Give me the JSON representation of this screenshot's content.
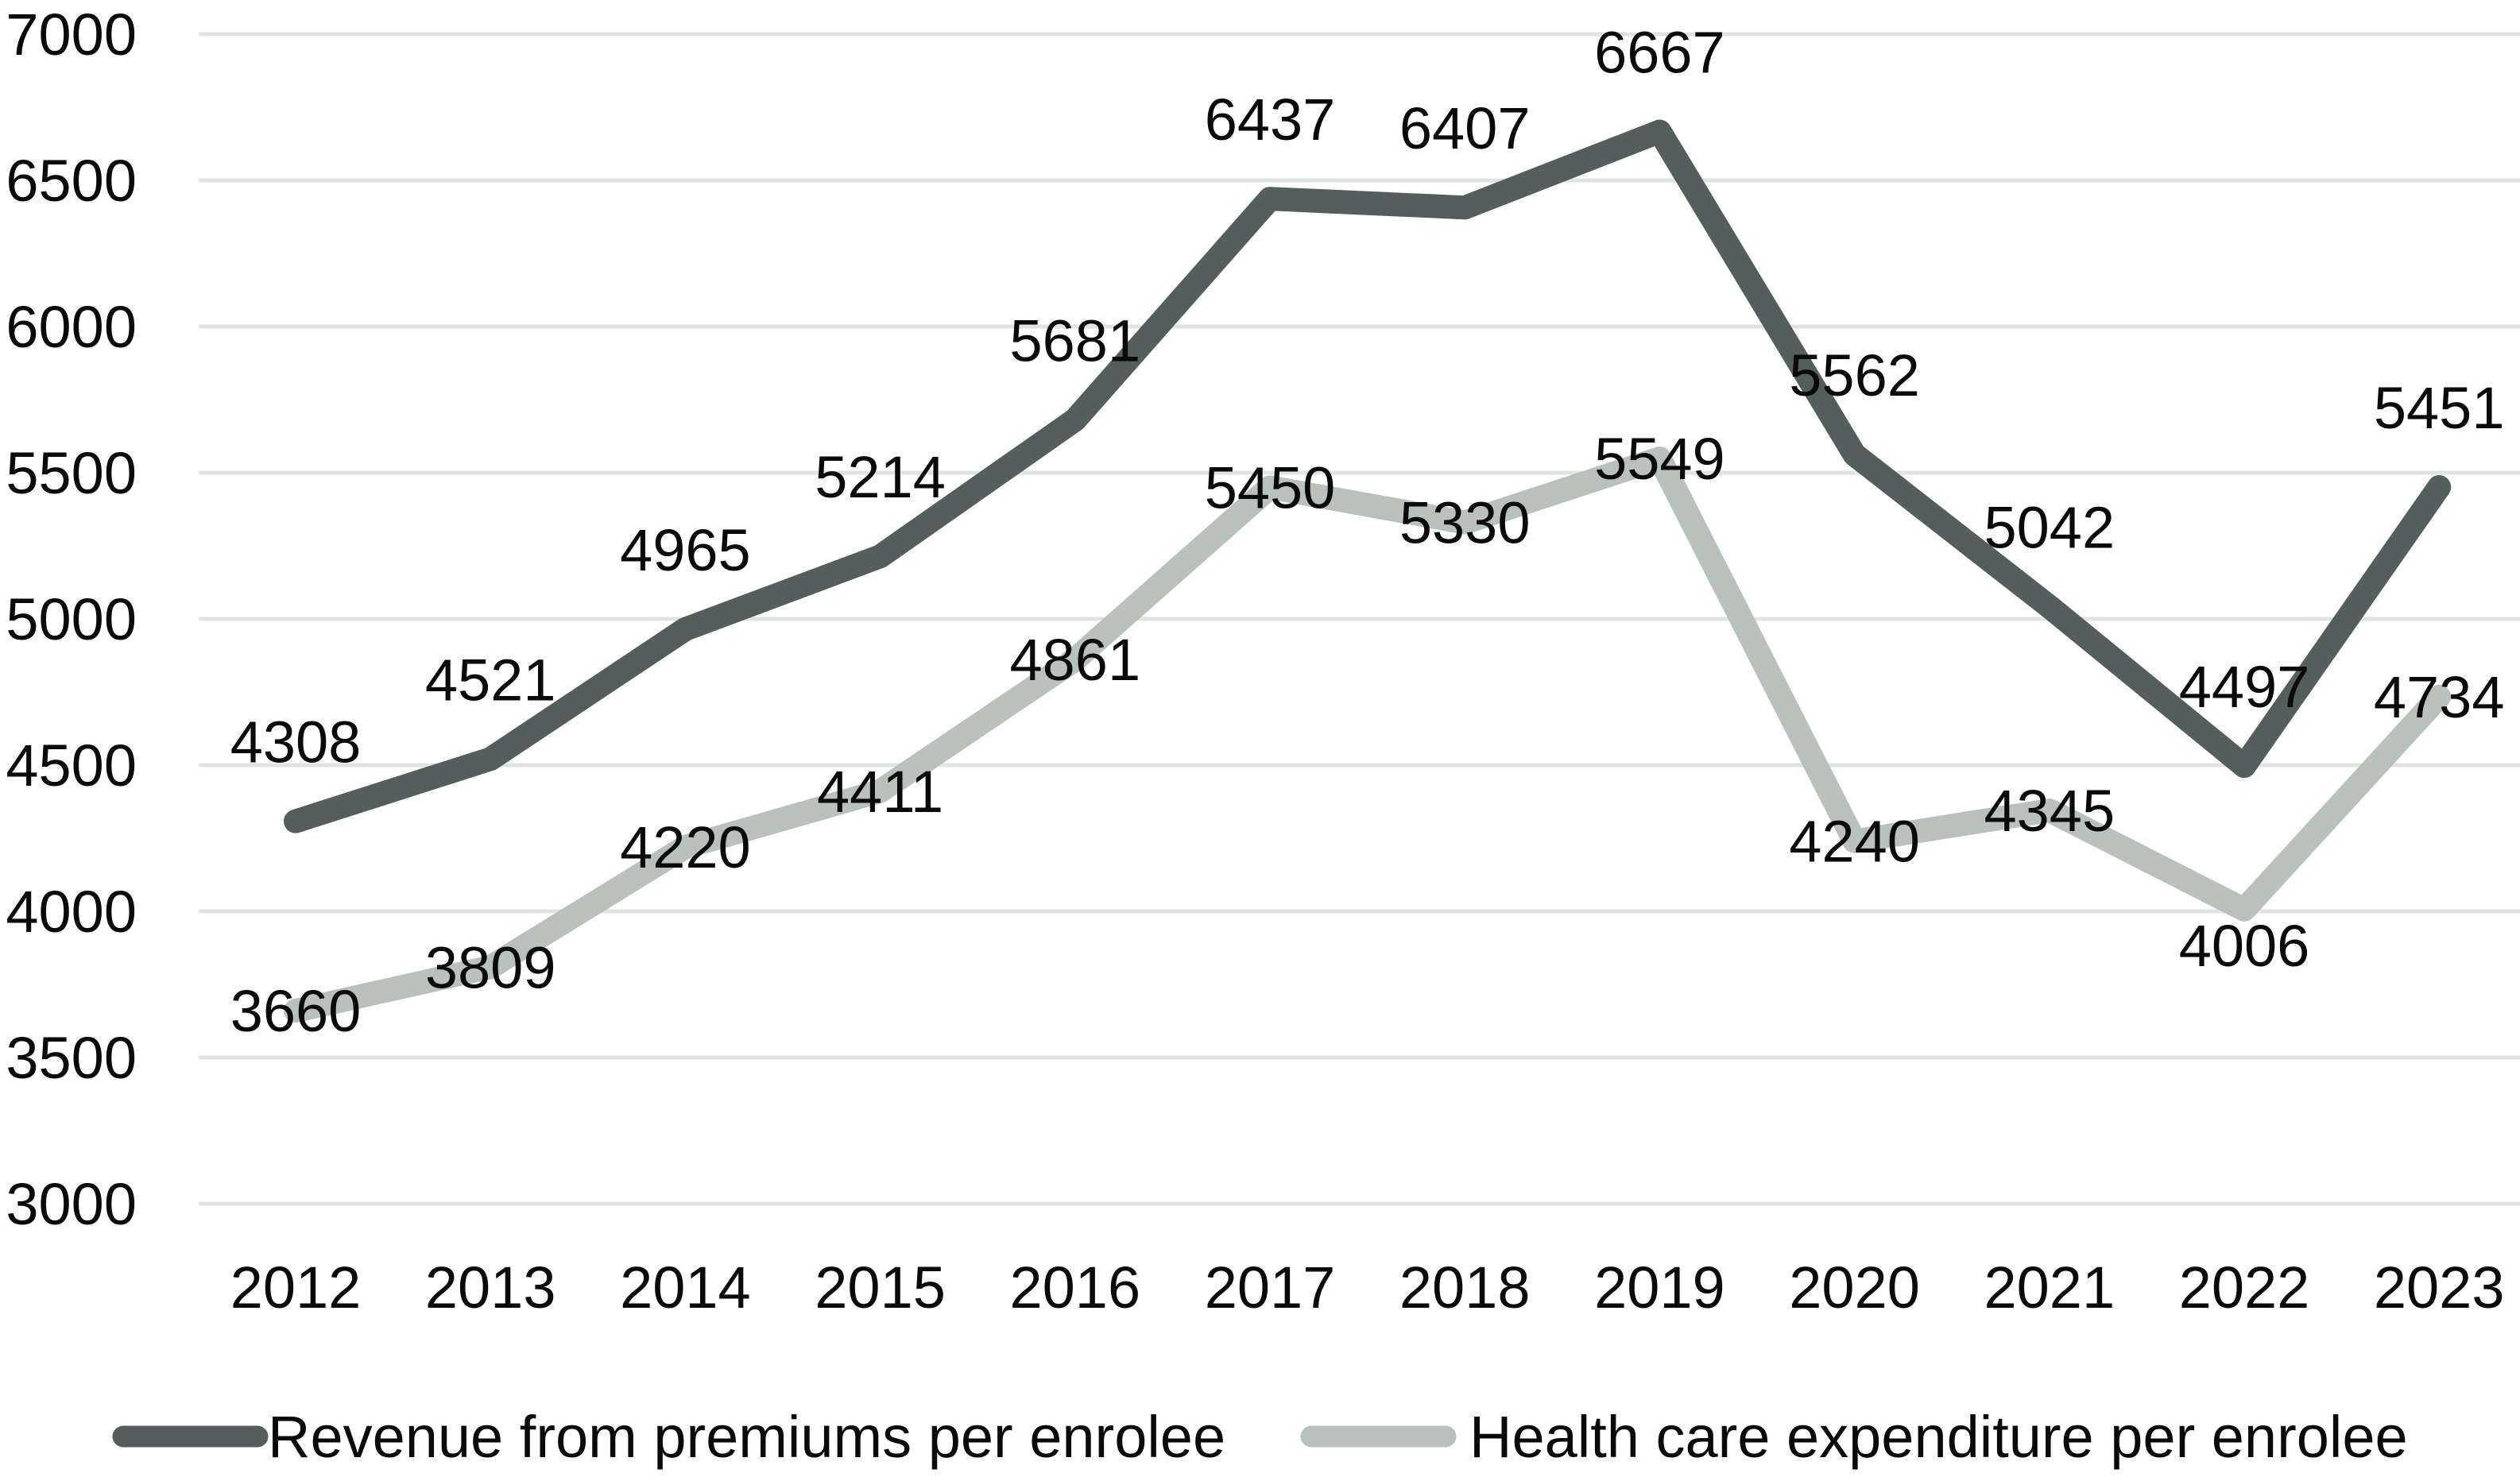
{
  "chart_data": {
    "type": "line",
    "categories": [
      "2012",
      "2013",
      "2014",
      "2015",
      "2016",
      "2017",
      "2018",
      "2019",
      "2020",
      "2021",
      "2022",
      "2023"
    ],
    "series": [
      {
        "name": "Revenue from premiums per enrolee",
        "color": "#545e5c",
        "values": [
          4308,
          4521,
          4965,
          5214,
          5681,
          6437,
          6407,
          6667,
          5562,
          5042,
          4497,
          5451
        ],
        "label_position": "above"
      },
      {
        "name": "Health care expenditure per enrolee",
        "color": "#b9c1bc",
        "values": [
          3660,
          3809,
          4220,
          4411,
          4861,
          5450,
          5330,
          5549,
          4240,
          4345,
          4006,
          4734
        ],
        "label_position": "center",
        "label_dy_overrides": {
          "10": 45
        }
      }
    ],
    "title": "",
    "xlabel": "",
    "ylabel": "",
    "ylim": [
      3000,
      7000
    ],
    "yticks": [
      3000,
      3500,
      4000,
      4500,
      5000,
      5500,
      6000,
      6500,
      7000
    ],
    "grid": true,
    "legend_position": "bottom",
    "gridline_color": "#e0e5e2",
    "text_color": "#0a0a0a"
  }
}
